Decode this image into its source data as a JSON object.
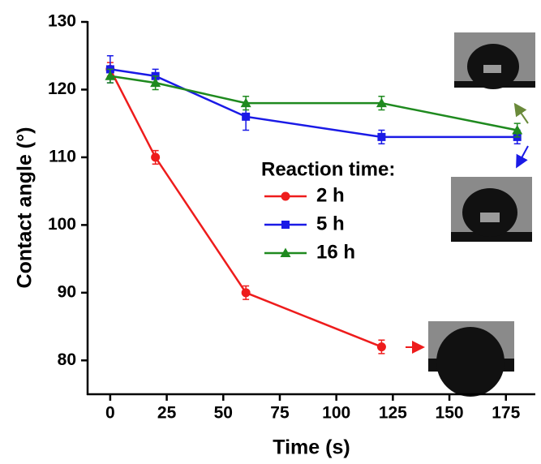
{
  "chart_data": {
    "type": "line",
    "xlabel": "Time (s)",
    "ylabel": "Contact angle (°)",
    "legend_title": "Reaction time:",
    "series": [
      {
        "name": "2 h",
        "color": "#ee1c1c",
        "marker": "circle",
        "x": [
          0,
          20,
          60,
          120
        ],
        "values": [
          123,
          110,
          90,
          82
        ],
        "errors": [
          1,
          1,
          1,
          1
        ]
      },
      {
        "name": "5 h",
        "color": "#1a1ae6",
        "marker": "square",
        "x": [
          0,
          20,
          60,
          120,
          180
        ],
        "values": [
          123,
          122,
          116,
          113,
          113
        ],
        "errors": [
          2,
          1,
          2,
          1,
          1
        ]
      },
      {
        "name": "16 h",
        "color": "#1f8a1f",
        "marker": "triangle",
        "x": [
          0,
          20,
          60,
          120,
          180
        ],
        "values": [
          122,
          121,
          118,
          118,
          114
        ],
        "errors": [
          1,
          1,
          1,
          1,
          1
        ]
      }
    ],
    "xlim": [
      -10,
      188
    ],
    "xticks": [
      0,
      25,
      50,
      75,
      100,
      125,
      150,
      175
    ],
    "ylim": [
      75,
      130
    ],
    "yticks": [
      80,
      90,
      100,
      110,
      120,
      130
    ]
  }
}
